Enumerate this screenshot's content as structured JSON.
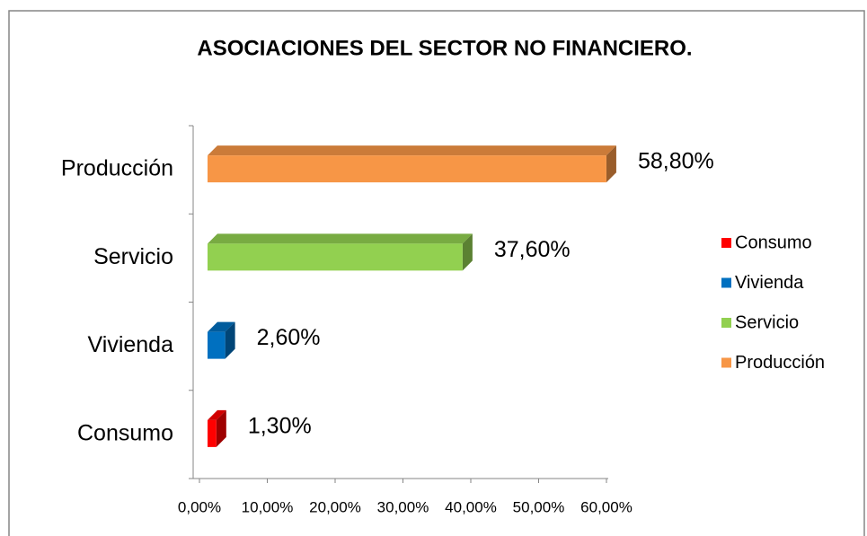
{
  "chart_data": {
    "type": "bar3d",
    "orientation": "horizontal",
    "title": "ASOCIACIONES DEL SECTOR NO FINANCIERO.",
    "categories": [
      "Consumo",
      "Vivienda",
      "Servicio",
      "Producción"
    ],
    "values": [
      1.3,
      2.6,
      37.6,
      58.8
    ],
    "value_labels": [
      "1,30%",
      "2,60%",
      "37,60%",
      "58,80%"
    ],
    "colors": [
      "#ff0000",
      "#0070c0",
      "#92d050",
      "#f79646"
    ],
    "xlim": [
      0,
      60
    ],
    "xticks": [
      {
        "value": 0,
        "label": "0,00%"
      },
      {
        "value": 10,
        "label": "10,00%"
      },
      {
        "value": 20,
        "label": "20,00%"
      },
      {
        "value": 30,
        "label": "30,00%"
      },
      {
        "value": 40,
        "label": "40,00%"
      },
      {
        "value": 50,
        "label": "50,00%"
      },
      {
        "value": 60,
        "label": "60,00%"
      }
    ],
    "legend": "right"
  }
}
